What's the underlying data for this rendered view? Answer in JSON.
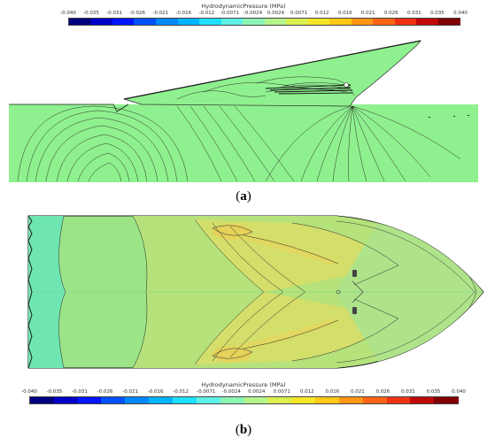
{
  "colorbar": {
    "title": "HydrodynamicPressure (MPa)",
    "ticks": [
      "-0.040",
      "-0.035",
      "-0.031",
      "-0.026",
      "-0.021",
      "-0.016",
      "-0.012",
      "-0.0071",
      "-0.0024",
      "0.0024",
      "0.0071",
      "0.012",
      "0.016",
      "0.021",
      "0.026",
      "0.031",
      "0.035",
      "0.040"
    ],
    "colors": [
      "#00007f",
      "#0000c8",
      "#0014ff",
      "#0050ff",
      "#0088ff",
      "#00b4ff",
      "#1ee0ff",
      "#5cf0e6",
      "#8cf5b4",
      "#b4f58c",
      "#dcf050",
      "#f5e628",
      "#ffc814",
      "#ff9614",
      "#ff6414",
      "#f03214",
      "#c00a0a",
      "#7f0000"
    ]
  },
  "panel_a": {
    "caption_open": "(",
    "caption_letter": "a",
    "caption_close": ")"
  },
  "panel_b": {
    "caption_open": "(",
    "caption_letter": "b",
    "caption_close": ")"
  }
}
